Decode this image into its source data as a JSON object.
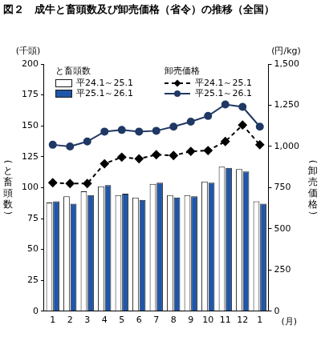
{
  "chart_data": {
    "type": "bar",
    "title": "図２　成牛と畜頭数及び卸売価格（省令）の推移（全国）",
    "y_label": "（と畜頭数）",
    "y2_label": "（卸売価格）",
    "y_unit": "(千頭)",
    "y2_unit": "(円/kg)",
    "x_unit": "(月)",
    "legend_titles": {
      "bar": "と畜頭数",
      "line": "卸売価格"
    },
    "categories": [
      "1",
      "2",
      "3",
      "4",
      "5",
      "6",
      "7",
      "8",
      "9",
      "10",
      "11",
      "12",
      "1"
    ],
    "series": [
      {
        "name": "平24.1～25.1",
        "type": "bar",
        "color": "#ffffff",
        "values": [
          88,
          93,
          97,
          101,
          94,
          92,
          103,
          94,
          94,
          105,
          117,
          115,
          89
        ]
      },
      {
        "name": "平25.1～26.1",
        "type": "bar",
        "color": "#1f56a8",
        "values": [
          89,
          87,
          94,
          102,
          95,
          90,
          104,
          92,
          93,
          104,
          116,
          113,
          87
        ]
      },
      {
        "name": "平24.1～25.1",
        "type": "line",
        "axis": "y2",
        "color": "#000000",
        "marker": "diamond",
        "line_style": "dashed",
        "values": [
          780,
          775,
          775,
          895,
          935,
          925,
          950,
          945,
          970,
          975,
          1030,
          1130,
          1010
        ]
      },
      {
        "name": "平25.1～26.1",
        "type": "line",
        "axis": "y2",
        "color": "#1f3864",
        "marker": "circle",
        "line_style": "solid",
        "values": [
          1010,
          1000,
          1030,
          1090,
          1100,
          1090,
          1095,
          1120,
          1150,
          1185,
          1255,
          1240,
          1120
        ]
      }
    ],
    "ylim": [
      0,
      200
    ],
    "yticks": [
      0,
      25,
      50,
      75,
      100,
      125,
      150,
      175,
      200
    ],
    "y2lim": [
      0,
      1500
    ],
    "y2ticks": [
      0,
      250,
      500,
      750,
      {
        "value": 1000,
        "label": "1,000"
      },
      {
        "value": 1250,
        "label": "1,250"
      },
      {
        "value": 1500,
        "label": "1,500"
      }
    ],
    "grid": false,
    "legend": "upper left"
  }
}
